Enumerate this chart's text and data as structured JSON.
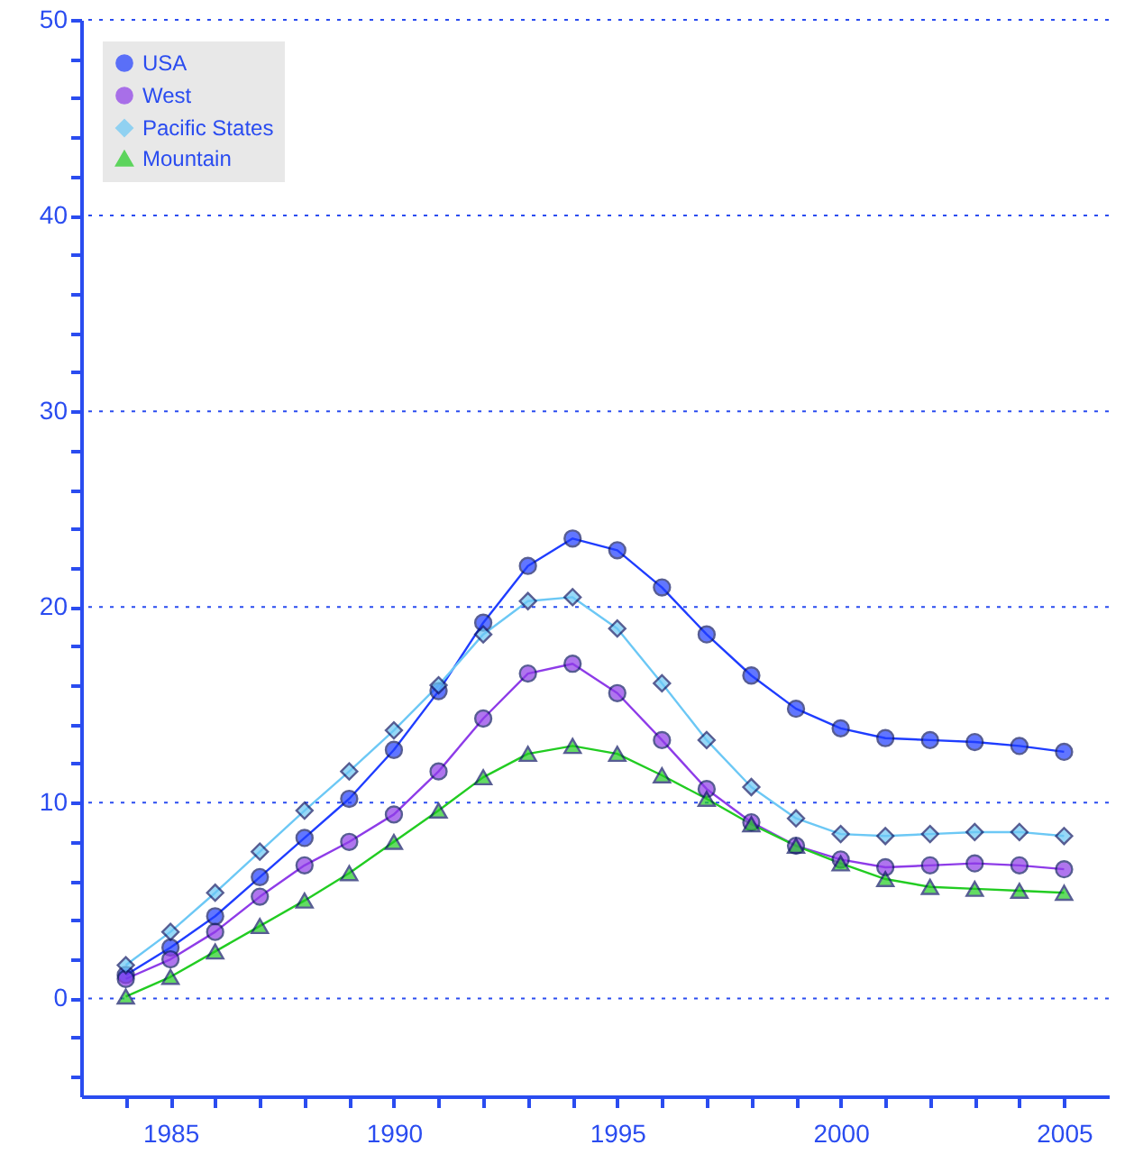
{
  "chart_data": {
    "type": "line",
    "x": [
      1984,
      1985,
      1986,
      1987,
      1988,
      1989,
      1990,
      1991,
      1992,
      1993,
      1994,
      1995,
      1996,
      1997,
      1998,
      1999,
      2000,
      2001,
      2002,
      2003,
      2004,
      2005
    ],
    "series": [
      {
        "name": "USA",
        "color": "#1f3dff",
        "marker": "circle",
        "values": [
          1.2,
          2.6,
          4.2,
          6.2,
          8.2,
          10.2,
          12.7,
          15.7,
          19.2,
          22.1,
          23.5,
          22.9,
          21.0,
          18.6,
          16.5,
          14.8,
          13.8,
          13.3,
          13.2,
          13.1,
          12.9,
          12.6
        ]
      },
      {
        "name": "West",
        "color": "#8e3ce8",
        "marker": "circle",
        "values": [
          1.0,
          2.0,
          3.4,
          5.2,
          6.8,
          8.0,
          9.4,
          11.6,
          14.3,
          16.6,
          17.1,
          15.6,
          13.2,
          10.7,
          9.0,
          7.8,
          7.1,
          6.7,
          6.8,
          6.9,
          6.8,
          6.6
        ]
      },
      {
        "name": "Pacific States",
        "color": "#6cc8f5",
        "marker": "diamond",
        "values": [
          1.7,
          3.4,
          5.4,
          7.5,
          9.6,
          11.6,
          13.7,
          16.0,
          18.6,
          20.3,
          20.5,
          18.9,
          16.1,
          13.2,
          10.8,
          9.2,
          8.4,
          8.3,
          8.4,
          8.5,
          8.5,
          8.3
        ]
      },
      {
        "name": "Mountain",
        "color": "#22cc22",
        "marker": "triangle",
        "values": [
          0.1,
          1.1,
          2.4,
          3.7,
          5.0,
          6.4,
          8.0,
          9.6,
          11.3,
          12.5,
          12.9,
          12.5,
          11.4,
          10.2,
          8.9,
          7.8,
          6.9,
          6.1,
          5.7,
          5.6,
          5.5,
          5.4
        ]
      }
    ],
    "xlim": [
      1983,
      2006
    ],
    "xticks": [
      {
        "value": 1984,
        "label": null
      },
      1985,
      {
        "value": 1986,
        "label": null
      },
      {
        "value": 1987,
        "label": null
      },
      {
        "value": 1988,
        "label": null
      },
      {
        "value": 1989,
        "label": null
      },
      1990,
      {
        "value": 1991,
        "label": null
      },
      {
        "value": 1992,
        "label": null
      },
      {
        "value": 1993,
        "label": null
      },
      {
        "value": 1994,
        "label": null
      },
      1995,
      {
        "value": 1996,
        "label": null
      },
      {
        "value": 1997,
        "label": null
      },
      {
        "value": 1998,
        "label": null
      },
      {
        "value": 1999,
        "label": null
      },
      2000,
      {
        "value": 2001,
        "label": null
      },
      {
        "value": 2002,
        "label": null
      },
      {
        "value": 2003,
        "label": null
      },
      {
        "value": 2004,
        "label": null
      },
      2005
    ],
    "ylim": [
      -5,
      50
    ],
    "yticks": [
      {
        "value": -4,
        "label": null
      },
      {
        "value": -2,
        "label": null
      },
      0,
      {
        "value": 2,
        "label": null
      },
      {
        "value": 4,
        "label": null
      },
      {
        "value": 6,
        "label": null
      },
      {
        "value": 8,
        "label": null
      },
      10,
      {
        "value": 12,
        "label": null
      },
      {
        "value": 14,
        "label": null
      },
      {
        "value": 16,
        "label": null
      },
      {
        "value": 18,
        "label": null
      },
      20,
      {
        "value": 22,
        "label": null
      },
      {
        "value": 24,
        "label": null
      },
      {
        "value": 26,
        "label": null
      },
      {
        "value": 28,
        "label": null
      },
      30,
      {
        "value": 32,
        "label": null
      },
      {
        "value": 34,
        "label": null
      },
      {
        "value": 36,
        "label": null
      },
      {
        "value": 38,
        "label": null
      },
      40,
      {
        "value": 42,
        "label": null
      },
      {
        "value": 44,
        "label": null
      },
      {
        "value": 46,
        "label": null
      },
      {
        "value": 48,
        "label": null
      },
      50
    ],
    "grid": "y",
    "legend": "top left",
    "line_style": "solid"
  }
}
